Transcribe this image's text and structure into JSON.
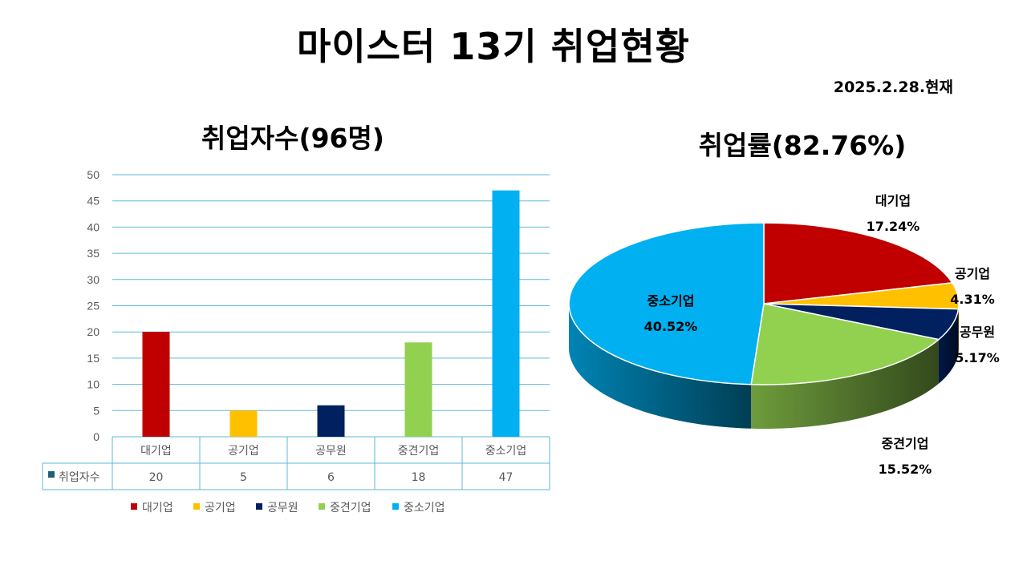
{
  "title": "마이스터 13기 취업현황",
  "date": "2025.2.28.현재",
  "chart_data": [
    {
      "type": "bar",
      "title": "취업자수(96명)",
      "categories": [
        "대기업",
        "공기업",
        "공무원",
        "중견기업",
        "중소기업"
      ],
      "series": [
        {
          "name": "취업자수",
          "values": [
            20,
            5,
            6,
            18,
            47
          ]
        }
      ],
      "colors": [
        "#c00000",
        "#ffc000",
        "#002060",
        "#92d050",
        "#00b0f0"
      ],
      "series_color": "#1f5f73",
      "ylim": [
        0,
        50
      ],
      "yticks": [
        0,
        5,
        10,
        15,
        20,
        25,
        30,
        35,
        40,
        45,
        50
      ],
      "data_table": true,
      "legend": [
        "대기업",
        "공기업",
        "공무원",
        "중견기업",
        "중소기업"
      ],
      "legend_position": "bottom",
      "grid": true
    },
    {
      "type": "pie",
      "title": "취업률(82.76%)",
      "style": "3d",
      "slices": [
        {
          "label": "대기업",
          "value": 17.24,
          "display": "17.24%",
          "color": "#c00000"
        },
        {
          "label": "공기업",
          "value": 4.31,
          "display": "4.31%",
          "color": "#ffc000"
        },
        {
          "label": "공무원",
          "value": 5.17,
          "display": "5.17%",
          "color": "#002060"
        },
        {
          "label": "중견기업",
          "value": 15.52,
          "display": "15.52%",
          "color": "#92d050"
        },
        {
          "label": "중소기업",
          "value": 40.52,
          "display": "40.52%",
          "color": "#00b0f0"
        }
      ]
    }
  ]
}
